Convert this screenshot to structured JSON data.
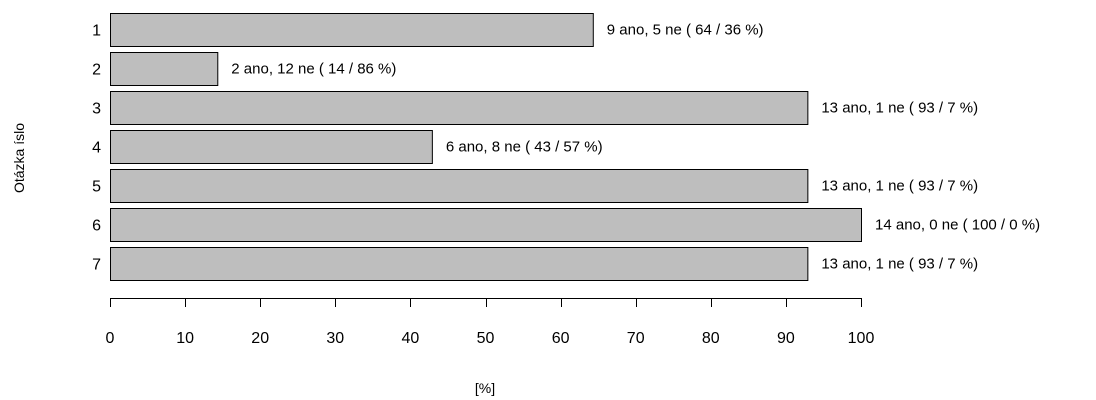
{
  "chart_data": {
    "type": "bar",
    "orientation": "horizontal",
    "categories": [
      "1",
      "2",
      "3",
      "4",
      "5",
      "6",
      "7"
    ],
    "values": [
      64.2857,
      14.2857,
      92.8571,
      42.8571,
      92.8571,
      100,
      92.8571
    ],
    "bar_labels": [
      "9 ano, 5 ne ( 64 / 36 %)",
      "2 ano, 12 ne ( 14 / 86 %)",
      "13 ano, 1 ne ( 93 / 7 %)",
      "6 ano, 8 ne ( 43 / 57 %)",
      "13 ano, 1 ne ( 93 / 7 %)",
      "14 ano, 0 ne ( 100 / 0 %)",
      "13 ano, 1 ne ( 93 / 7 %)"
    ],
    "xlabel": "[%]",
    "ylabel": "Otázka  íslo",
    "xlim": [
      0,
      100
    ],
    "xticks": [
      0,
      10,
      20,
      30,
      40,
      50,
      60,
      70,
      80,
      90,
      100
    ],
    "grid": false,
    "legend": "none",
    "bar_color": "#bebebe",
    "edge_color": "#000000"
  }
}
